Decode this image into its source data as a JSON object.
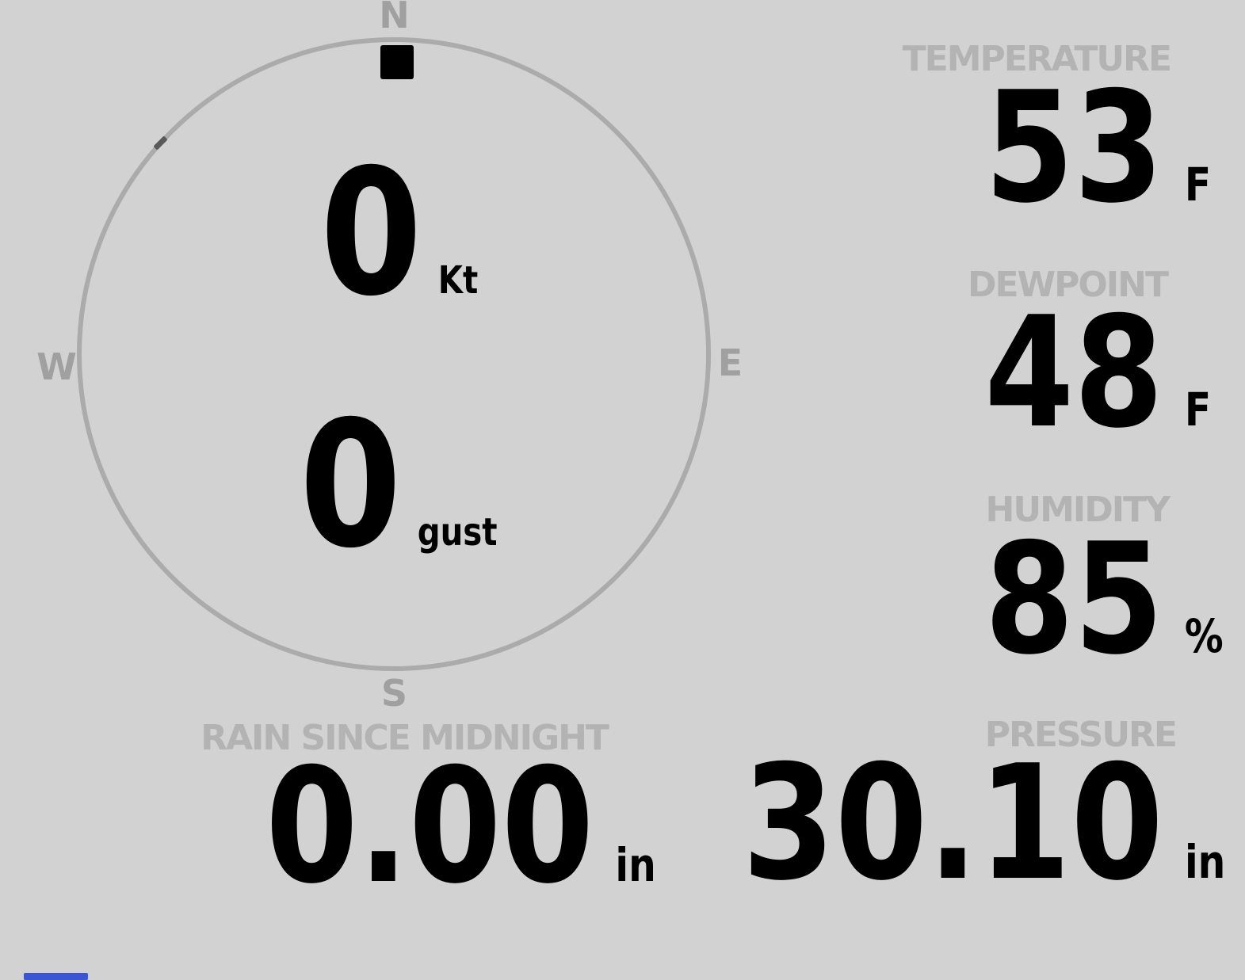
{
  "compass": {
    "cardinals": {
      "north": "N",
      "east": "E",
      "south": "S",
      "west": "W"
    },
    "wind_direction_marker": "N",
    "wind_speed": {
      "value": "0",
      "unit": "Kt"
    },
    "wind_gust": {
      "value": "0",
      "unit": "gust"
    }
  },
  "metrics": {
    "temperature": {
      "label": "TEMPERATURE",
      "value": "53",
      "unit": "F"
    },
    "dewpoint": {
      "label": "DEWPOINT",
      "value": "48",
      "unit": "F"
    },
    "humidity": {
      "label": "HUMIDITY",
      "value": "85",
      "unit": "%"
    },
    "pressure": {
      "label": "PRESSURE",
      "value": "30.10",
      "unit": "in"
    },
    "rain_since_midnight": {
      "label": "RAIN SINCE MIDNIGHT",
      "value": "0.00",
      "unit": "in"
    }
  },
  "colors": {
    "background": "#d2d2d2",
    "ring_gray": "#ababab",
    "cardinal_gray": "#a0a0a0",
    "header_gray": "#b3b3b3",
    "value_black": "#000000",
    "marker_black": "#000000",
    "bottom_bar_blue": "#3a56d4"
  }
}
